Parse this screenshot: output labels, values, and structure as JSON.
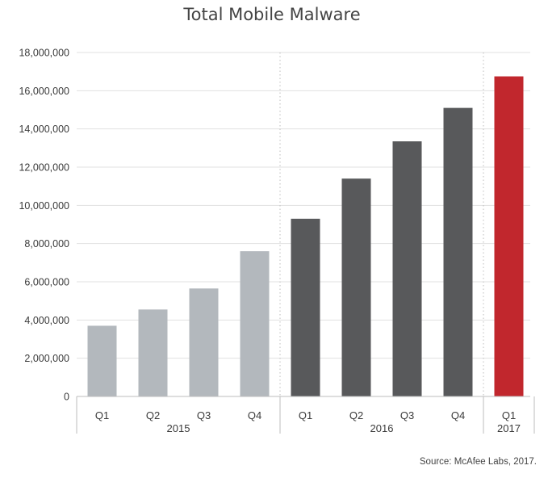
{
  "chart_data": {
    "type": "bar",
    "title": "Total Mobile Malware",
    "xlabel": "",
    "ylabel": "",
    "ylim": [
      0,
      18000000
    ],
    "yticks": [
      "0",
      "2,000,000",
      "4,000,000",
      "6,000,000",
      "8,000,000",
      "10,000,000",
      "12,000,000",
      "14,000,000",
      "16,000,000",
      "18,000,000"
    ],
    "categories": [
      "Q1",
      "Q2",
      "Q3",
      "Q4",
      "Q1",
      "Q2",
      "Q3",
      "Q4",
      "Q1"
    ],
    "groups": [
      {
        "label": "2015",
        "count": 4,
        "color": "#b3b8bd"
      },
      {
        "label": "2016",
        "count": 4,
        "color": "#58595b"
      },
      {
        "label": "2017",
        "count": 1,
        "color": "#c1272d"
      }
    ],
    "values": [
      3700000,
      4550000,
      5650000,
      7600000,
      9300000,
      11400000,
      13350000,
      15100000,
      16750000
    ],
    "grid": true
  },
  "source": "Source: McAfee Labs, 2017."
}
